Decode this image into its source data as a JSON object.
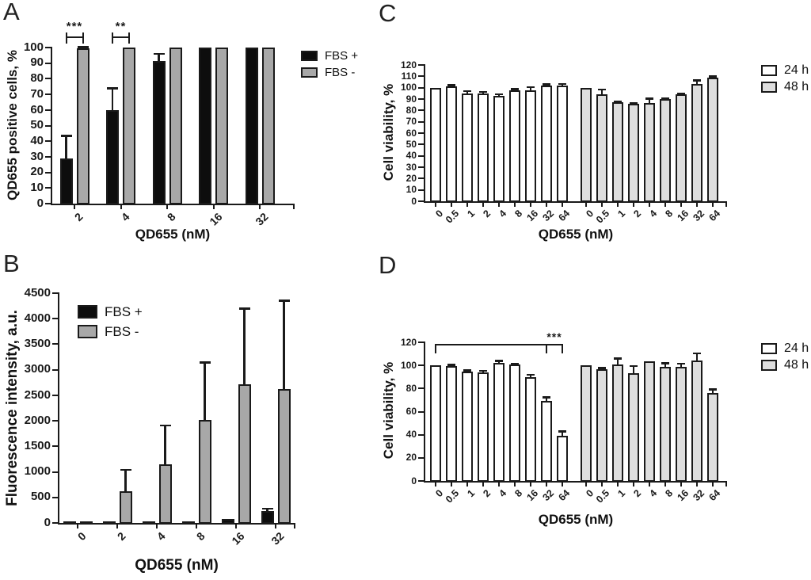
{
  "colors": {
    "black_bar": "#0d0d0d",
    "gray_bar": "#a8a8a8",
    "light_gray_bar": "#dedede",
    "stroke": "#1a1a1a"
  },
  "chart_data": [
    {
      "type": "bar",
      "panel": "A",
      "ylabel": "QD655 positive cells, %",
      "xlabel": "QD655 (nM)",
      "ylim": [
        0,
        100
      ],
      "ytick_step": 10,
      "grid": false,
      "grouping": "paired",
      "legend_position": "right-outside",
      "categories": [
        "2",
        "4",
        "8",
        "16",
        "32"
      ],
      "series": [
        {
          "name": "FBS +",
          "color": "#0d0d0d",
          "values": [
            29,
            60,
            91.5,
            100,
            100
          ],
          "errors": [
            14.5,
            14,
            4.5,
            0,
            0
          ]
        },
        {
          "name": "FBS -",
          "color": "#a8a8a8",
          "values": [
            99.5,
            100,
            100,
            100,
            100
          ],
          "errors": [
            1,
            0,
            0,
            0,
            0
          ]
        }
      ],
      "significance": [
        {
          "category": "2",
          "label": "***"
        },
        {
          "category": "4",
          "label": "**"
        }
      ]
    },
    {
      "type": "bar",
      "panel": "B",
      "ylabel": "Fluorescence intensity, a.u.",
      "xlabel": "QD655 (nM)",
      "ylim": [
        0,
        4500
      ],
      "ytick_step": 500,
      "grid": false,
      "grouping": "paired",
      "legend_position": "inside-top-left",
      "categories": [
        "0",
        "2",
        "4",
        "8",
        "16",
        "32"
      ],
      "series": [
        {
          "name": "FBS +",
          "color": "#0d0d0d",
          "values": [
            10,
            15,
            20,
            30,
            75,
            240
          ],
          "errors": [
            0,
            0,
            0,
            8,
            12,
            40
          ]
        },
        {
          "name": "FBS -",
          "color": "#a8a8a8",
          "values": [
            10,
            620,
            1150,
            2010,
            2720,
            2620
          ],
          "errors": [
            0,
            420,
            760,
            1140,
            1480,
            1740
          ]
        }
      ],
      "significance": []
    },
    {
      "type": "bar",
      "panel": "C",
      "ylabel": "Cell viability, %",
      "xlabel": "QD655 (nM)",
      "ylim": [
        0,
        120
      ],
      "ytick_step": 10,
      "grid": false,
      "grouping": "blocks",
      "legend_position": "right-outside",
      "categories": [
        "0",
        "0.5",
        "1",
        "2",
        "4",
        "8",
        "16",
        "32",
        "64"
      ],
      "series": [
        {
          "name": "24 h",
          "color": "#ffffff",
          "values": [
            100,
            101.5,
            95,
            95,
            92.5,
            98,
            98,
            102,
            102
          ],
          "errors": [
            0,
            1,
            2,
            1.5,
            2,
            1,
            2.5,
            1,
            1.5
          ]
        },
        {
          "name": "48 h",
          "color": "#dedede",
          "values": [
            100,
            94,
            87,
            85.5,
            86.5,
            90,
            94,
            103,
            108.5
          ],
          "errors": [
            0,
            4.5,
            1,
            1,
            4,
            1,
            1,
            3.5,
            1.5
          ]
        }
      ],
      "significance": []
    },
    {
      "type": "bar",
      "panel": "D",
      "ylabel": "Cell viability, %",
      "xlabel": "QD655 (nM)",
      "ylim": [
        0,
        120
      ],
      "ytick_step": 20,
      "grid": false,
      "grouping": "blocks",
      "legend_position": "right-outside",
      "categories": [
        "0",
        "0.5",
        "1",
        "2",
        "4",
        "8",
        "16",
        "32",
        "64"
      ],
      "series": [
        {
          "name": "24 h",
          "color": "#ffffff",
          "values": [
            100,
            99.5,
            94.5,
            94,
            102,
            100.5,
            90,
            69.5,
            39
          ],
          "errors": [
            0,
            1,
            1.5,
            1.5,
            2,
            1,
            2,
            3,
            4
          ]
        },
        {
          "name": "48 h",
          "color": "#dedede",
          "values": [
            100,
            96.5,
            101,
            93.5,
            103.5,
            99,
            98.5,
            104,
            76
          ],
          "errors": [
            0,
            1.5,
            5,
            6,
            0.5,
            3,
            3,
            6.5,
            3.5
          ]
        }
      ],
      "significance": [
        {
          "from_category": "0",
          "mid_category": "32",
          "to_category": "64",
          "series": "24 h",
          "label": "***"
        }
      ]
    }
  ]
}
